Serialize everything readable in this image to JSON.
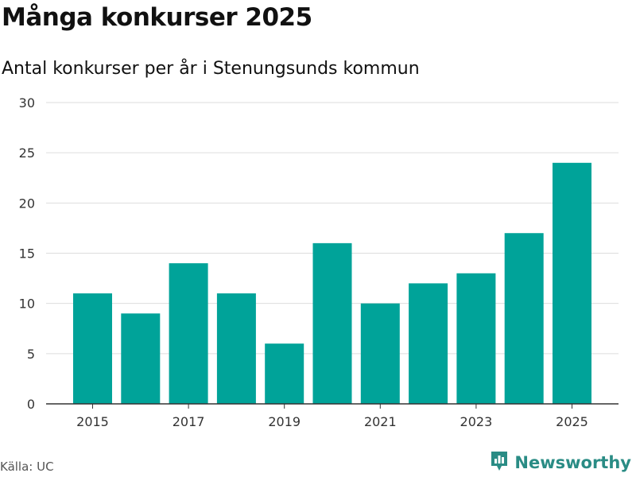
{
  "title": "Många konkurser 2025",
  "subtitle": "Antal konkurser per år i Stenungsunds kommun",
  "source": "Källa: UC",
  "brand": {
    "name": "Newsworthy",
    "icon": "newsworthy-logo-icon"
  },
  "colors": {
    "bar": "#00A399",
    "grid": "#dddddd",
    "axis": "#333333",
    "brand": "#2a8c85"
  },
  "chart_data": {
    "type": "bar",
    "categories": [
      "2015",
      "2016",
      "2017",
      "2018",
      "2019",
      "2020",
      "2021",
      "2022",
      "2023",
      "2024",
      "2025"
    ],
    "values": [
      11,
      9,
      14,
      11,
      6,
      16,
      10,
      12,
      13,
      17,
      24
    ],
    "x_tick_labels": [
      "2015",
      "2017",
      "2019",
      "2021",
      "2023",
      "2025"
    ],
    "y_ticks": [
      0,
      5,
      10,
      15,
      20,
      25,
      30
    ],
    "ylim": [
      0,
      30
    ],
    "xlabel": "",
    "ylabel": "",
    "grid": true,
    "legend": "none"
  }
}
